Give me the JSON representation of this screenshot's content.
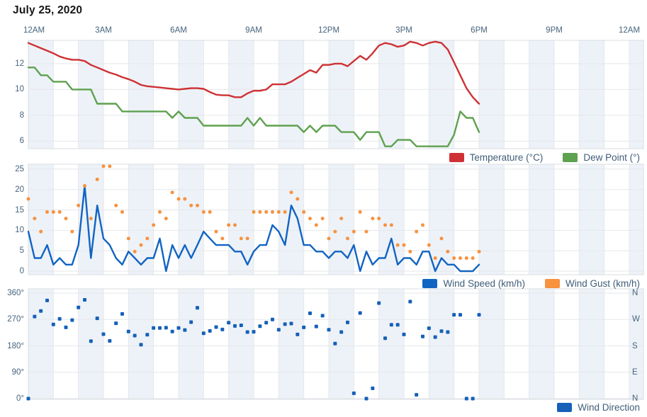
{
  "title": "July 25, 2020",
  "colors": {
    "temperature": "#ce3134",
    "dew_point": "#5ea14e",
    "wind_speed": "#1164c2",
    "wind_gust": "#f7923f",
    "wind_direction": "#1660b8",
    "band": "#edf2f8",
    "gridline": "#e5e7ea",
    "plot_border": "#d9dde2",
    "axis_text": "#46637d",
    "legend_text": "#3f5d78",
    "title_text": "#161616"
  },
  "x_axis": {
    "labels": [
      "12AM",
      "3AM",
      "6AM",
      "9AM",
      "12PM",
      "3PM",
      "6PM",
      "9PM",
      "12AM"
    ],
    "span_hours": 24,
    "data_start": "12:00 AM",
    "data_end": "6:00 PM",
    "interval_minutes": 15
  },
  "chart_data": [
    {
      "type": "line",
      "ylabel": "",
      "y_ticks": [
        "12",
        "10",
        "8",
        "6"
      ],
      "y_tick_values": [
        12,
        10,
        8,
        6
      ],
      "ylim": [
        5.42,
        13.8
      ],
      "legend_position": "bottom-right",
      "grid": true,
      "series": [
        {
          "name": "Temperature (°C)",
          "style": "line",
          "color_key": "temperature",
          "values": [
            13.6,
            13.4,
            13.2,
            13.0,
            12.8,
            12.55,
            12.4,
            12.3,
            12.3,
            12.2,
            11.9,
            11.7,
            11.5,
            11.3,
            11.15,
            10.95,
            10.8,
            10.6,
            10.35,
            10.25,
            10.2,
            10.15,
            10.1,
            10.05,
            10.0,
            10.05,
            10.1,
            10.1,
            10.05,
            9.8,
            9.6,
            9.55,
            9.55,
            9.4,
            9.4,
            9.7,
            9.9,
            9.9,
            10.0,
            10.4,
            10.4,
            10.4,
            10.6,
            10.9,
            11.2,
            11.5,
            11.3,
            11.9,
            11.9,
            12.0,
            12.0,
            11.8,
            12.2,
            12.6,
            12.3,
            12.8,
            13.4,
            13.6,
            13.5,
            13.3,
            13.4,
            13.7,
            13.6,
            13.4,
            13.6,
            13.7,
            13.6,
            13.1,
            12.1,
            11.1,
            10.1,
            9.4,
            8.9
          ]
        },
        {
          "name": "Dew Point (°)",
          "style": "line",
          "color_key": "dew_point",
          "values": [
            11.7,
            11.7,
            11.1,
            11.1,
            10.6,
            10.6,
            10.6,
            10.0,
            10.0,
            10.0,
            10.0,
            8.9,
            8.9,
            8.9,
            8.9,
            8.3,
            8.3,
            8.3,
            8.3,
            8.3,
            8.3,
            8.3,
            8.3,
            7.8,
            8.3,
            7.8,
            7.8,
            7.8,
            7.2,
            7.2,
            7.2,
            7.2,
            7.2,
            7.2,
            7.2,
            7.8,
            7.2,
            7.8,
            7.2,
            7.2,
            7.2,
            7.2,
            7.2,
            7.2,
            6.7,
            7.2,
            6.7,
            7.2,
            7.2,
            7.2,
            6.7,
            6.7,
            6.7,
            6.1,
            6.7,
            6.7,
            6.7,
            5.6,
            5.6,
            6.1,
            6.1,
            6.1,
            5.6,
            5.6,
            5.6,
            5.6,
            5.6,
            5.6,
            6.5,
            8.3,
            7.8,
            7.8,
            6.7
          ]
        }
      ]
    },
    {
      "type": "line+scatter",
      "ylabel": "",
      "y_ticks": [
        "25",
        "20",
        "15",
        "10",
        "5",
        "0"
      ],
      "y_tick_values": [
        25,
        20,
        15,
        10,
        5,
        0
      ],
      "ylim": [
        -0.87,
        26.2
      ],
      "legend_position": "bottom-right",
      "grid": true,
      "series": [
        {
          "name": "Wind Speed (km/h)",
          "style": "line",
          "color_key": "wind_speed",
          "values": [
            9.7,
            3.2,
            3.2,
            6.4,
            1.6,
            3.2,
            1.6,
            1.6,
            6.4,
            20.9,
            3.2,
            16.1,
            8.0,
            6.4,
            3.2,
            1.6,
            4.8,
            3.2,
            1.6,
            3.2,
            3.2,
            8.0,
            0,
            6.4,
            3.2,
            6.4,
            3.2,
            6.4,
            9.7,
            8.0,
            6.4,
            6.4,
            6.4,
            4.8,
            4.8,
            1.6,
            4.8,
            6.4,
            6.4,
            11.3,
            9.7,
            6.4,
            16.1,
            12.9,
            6.4,
            6.4,
            4.8,
            4.8,
            3.2,
            4.8,
            4.8,
            3.2,
            6.4,
            0,
            4.8,
            1.6,
            3.2,
            3.2,
            8.0,
            1.6,
            3.2,
            3.2,
            1.6,
            4.8,
            4.8,
            0,
            3.2,
            1.6,
            1.6,
            0,
            0,
            0,
            1.6
          ]
        },
        {
          "name": "Wind Gust (km/h)",
          "style": "scatter",
          "color_key": "wind_gust",
          "values": [
            17.7,
            12.9,
            9.7,
            14.5,
            14.5,
            14.5,
            12.9,
            9.7,
            16.1,
            20.9,
            12.9,
            22.5,
            25.7,
            25.7,
            16.1,
            14.5,
            8.0,
            4.8,
            6.4,
            8.0,
            11.3,
            14.5,
            12.9,
            19.3,
            17.7,
            17.7,
            16.1,
            16.1,
            14.5,
            14.5,
            9.7,
            8.0,
            11.3,
            11.3,
            8.0,
            8.0,
            14.5,
            14.5,
            14.5,
            14.5,
            14.5,
            14.5,
            19.3,
            17.7,
            14.5,
            12.9,
            11.3,
            12.9,
            8.0,
            9.7,
            12.9,
            8.0,
            9.7,
            14.5,
            9.7,
            12.9,
            12.9,
            11.3,
            11.3,
            6.4,
            6.4,
            4.8,
            9.7,
            11.3,
            6.4,
            3.2,
            8.0,
            4.8,
            3.2,
            3.2,
            3.2,
            3.2,
            4.8
          ]
        }
      ]
    },
    {
      "type": "scatter",
      "ylabel": "",
      "y_ticks": [
        "360°",
        "270°",
        "180°",
        "90°",
        "0°"
      ],
      "y_tick_values": [
        360,
        270,
        180,
        90,
        0
      ],
      "right_axis_labels": [
        "N",
        "W",
        "S",
        "E",
        "N"
      ],
      "ylim": [
        -2.4,
        374.5
      ],
      "legend_position": "bottom-right",
      "grid": true,
      "series": [
        {
          "name": "Wind Direction",
          "style": "scatter-square",
          "color_key": "wind_direction",
          "values": [
            0,
            280,
            299,
            335,
            253,
            272,
            243,
            268,
            311,
            337,
            196,
            274,
            220,
            197,
            257,
            289,
            229,
            215,
            184,
            218,
            241,
            241,
            242,
            229,
            241,
            234,
            261,
            310,
            223,
            231,
            244,
            236,
            259,
            248,
            250,
            227,
            228,
            247,
            259,
            270,
            235,
            254,
            256,
            219,
            243,
            291,
            246,
            283,
            235,
            188,
            227,
            260,
            18,
            292,
            0,
            35,
            326,
            206,
            252,
            252,
            219,
            331,
            13,
            212,
            240,
            210,
            230,
            227,
            286,
            286,
            0,
            0,
            286
          ]
        }
      ]
    }
  ]
}
